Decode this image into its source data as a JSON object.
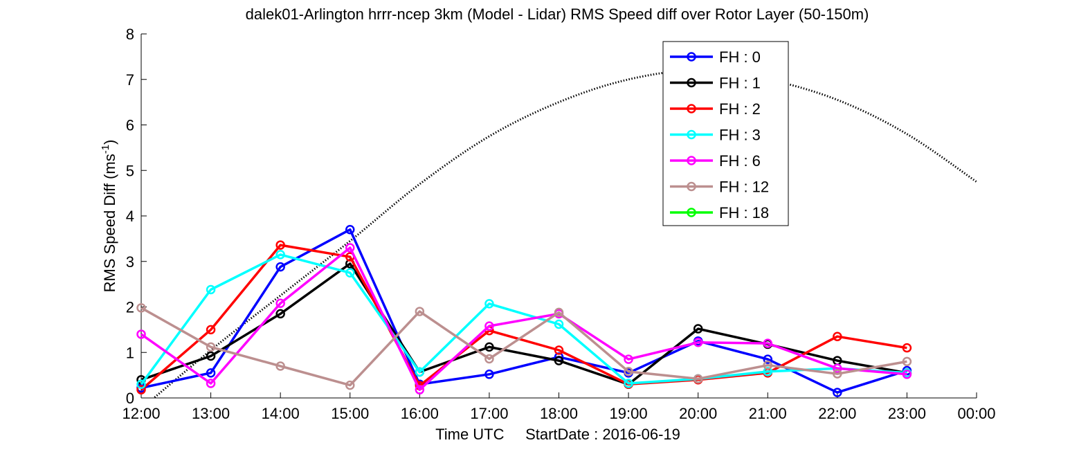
{
  "chart_data": {
    "type": "line",
    "title": "dalek01-Arlington hrrr-ncep 3km (Model - Lidar) RMS Speed diff over Rotor Layer (50-150m)",
    "xlabel": "Time UTC     StartDate : 2016-06-19",
    "ylabel_main": "RMS Speed Diff (ms",
    "ylabel_sup": "-1",
    "ylabel_end": ")",
    "x_ticks": [
      "12:00",
      "13:00",
      "14:00",
      "15:00",
      "16:00",
      "17:00",
      "18:00",
      "19:00",
      "20:00",
      "21:00",
      "22:00",
      "23:00",
      "00:00"
    ],
    "y_ticks": [
      "0",
      "1",
      "2",
      "3",
      "4",
      "5",
      "6",
      "7",
      "8"
    ],
    "ylim": [
      0,
      8
    ],
    "grid": false,
    "legend_position": "top-center-right",
    "series": [
      {
        "name": "FH : 0",
        "color": "#0000ff",
        "values": [
          0.22,
          0.55,
          2.88,
          3.7,
          0.3,
          0.52,
          0.9,
          0.55,
          1.25,
          0.85,
          0.12,
          0.6
        ]
      },
      {
        "name": "FH : 1",
        "color": "#000000",
        "values": [
          0.4,
          0.92,
          1.85,
          2.95,
          0.57,
          1.12,
          0.82,
          0.3,
          1.52,
          1.18,
          0.82,
          0.55
        ]
      },
      {
        "name": "FH : 2",
        "color": "#ff0000",
        "values": [
          0.18,
          1.5,
          3.36,
          3.1,
          0.27,
          1.48,
          1.05,
          0.3,
          0.4,
          0.55,
          1.35,
          1.1
        ]
      },
      {
        "name": "FH : 3",
        "color": "#00ffff",
        "values": [
          0.3,
          2.38,
          3.15,
          2.75,
          0.57,
          2.07,
          1.62,
          0.32,
          0.42,
          0.58,
          0.65,
          0.55
        ]
      },
      {
        "name": "FH : 6",
        "color": "#ff00ff",
        "values": [
          1.4,
          0.32,
          2.08,
          3.3,
          0.18,
          1.58,
          1.85,
          0.85,
          1.22,
          1.2,
          0.65,
          0.52
        ]
      },
      {
        "name": "FH : 12",
        "color": "#bc8f8f",
        "values": [
          1.98,
          1.12,
          0.7,
          0.28,
          1.9,
          0.86,
          1.88,
          0.58,
          0.42,
          0.72,
          0.53,
          0.8
        ]
      },
      {
        "name": "FH : 18",
        "color": "#00ff00",
        "values": []
      }
    ],
    "reference_curve": {
      "style": "dotted",
      "color": "#000000",
      "points": [
        [
          -0.2,
          -0.5
        ],
        [
          1,
          1.05
        ],
        [
          2,
          2.25
        ],
        [
          3,
          3.45
        ],
        [
          4,
          4.7
        ],
        [
          5,
          5.75
        ],
        [
          6,
          6.5
        ],
        [
          7,
          7.0
        ],
        [
          8,
          7.2
        ],
        [
          9,
          7.0
        ],
        [
          10,
          6.55
        ],
        [
          11,
          5.8
        ],
        [
          12,
          4.75
        ]
      ]
    }
  }
}
